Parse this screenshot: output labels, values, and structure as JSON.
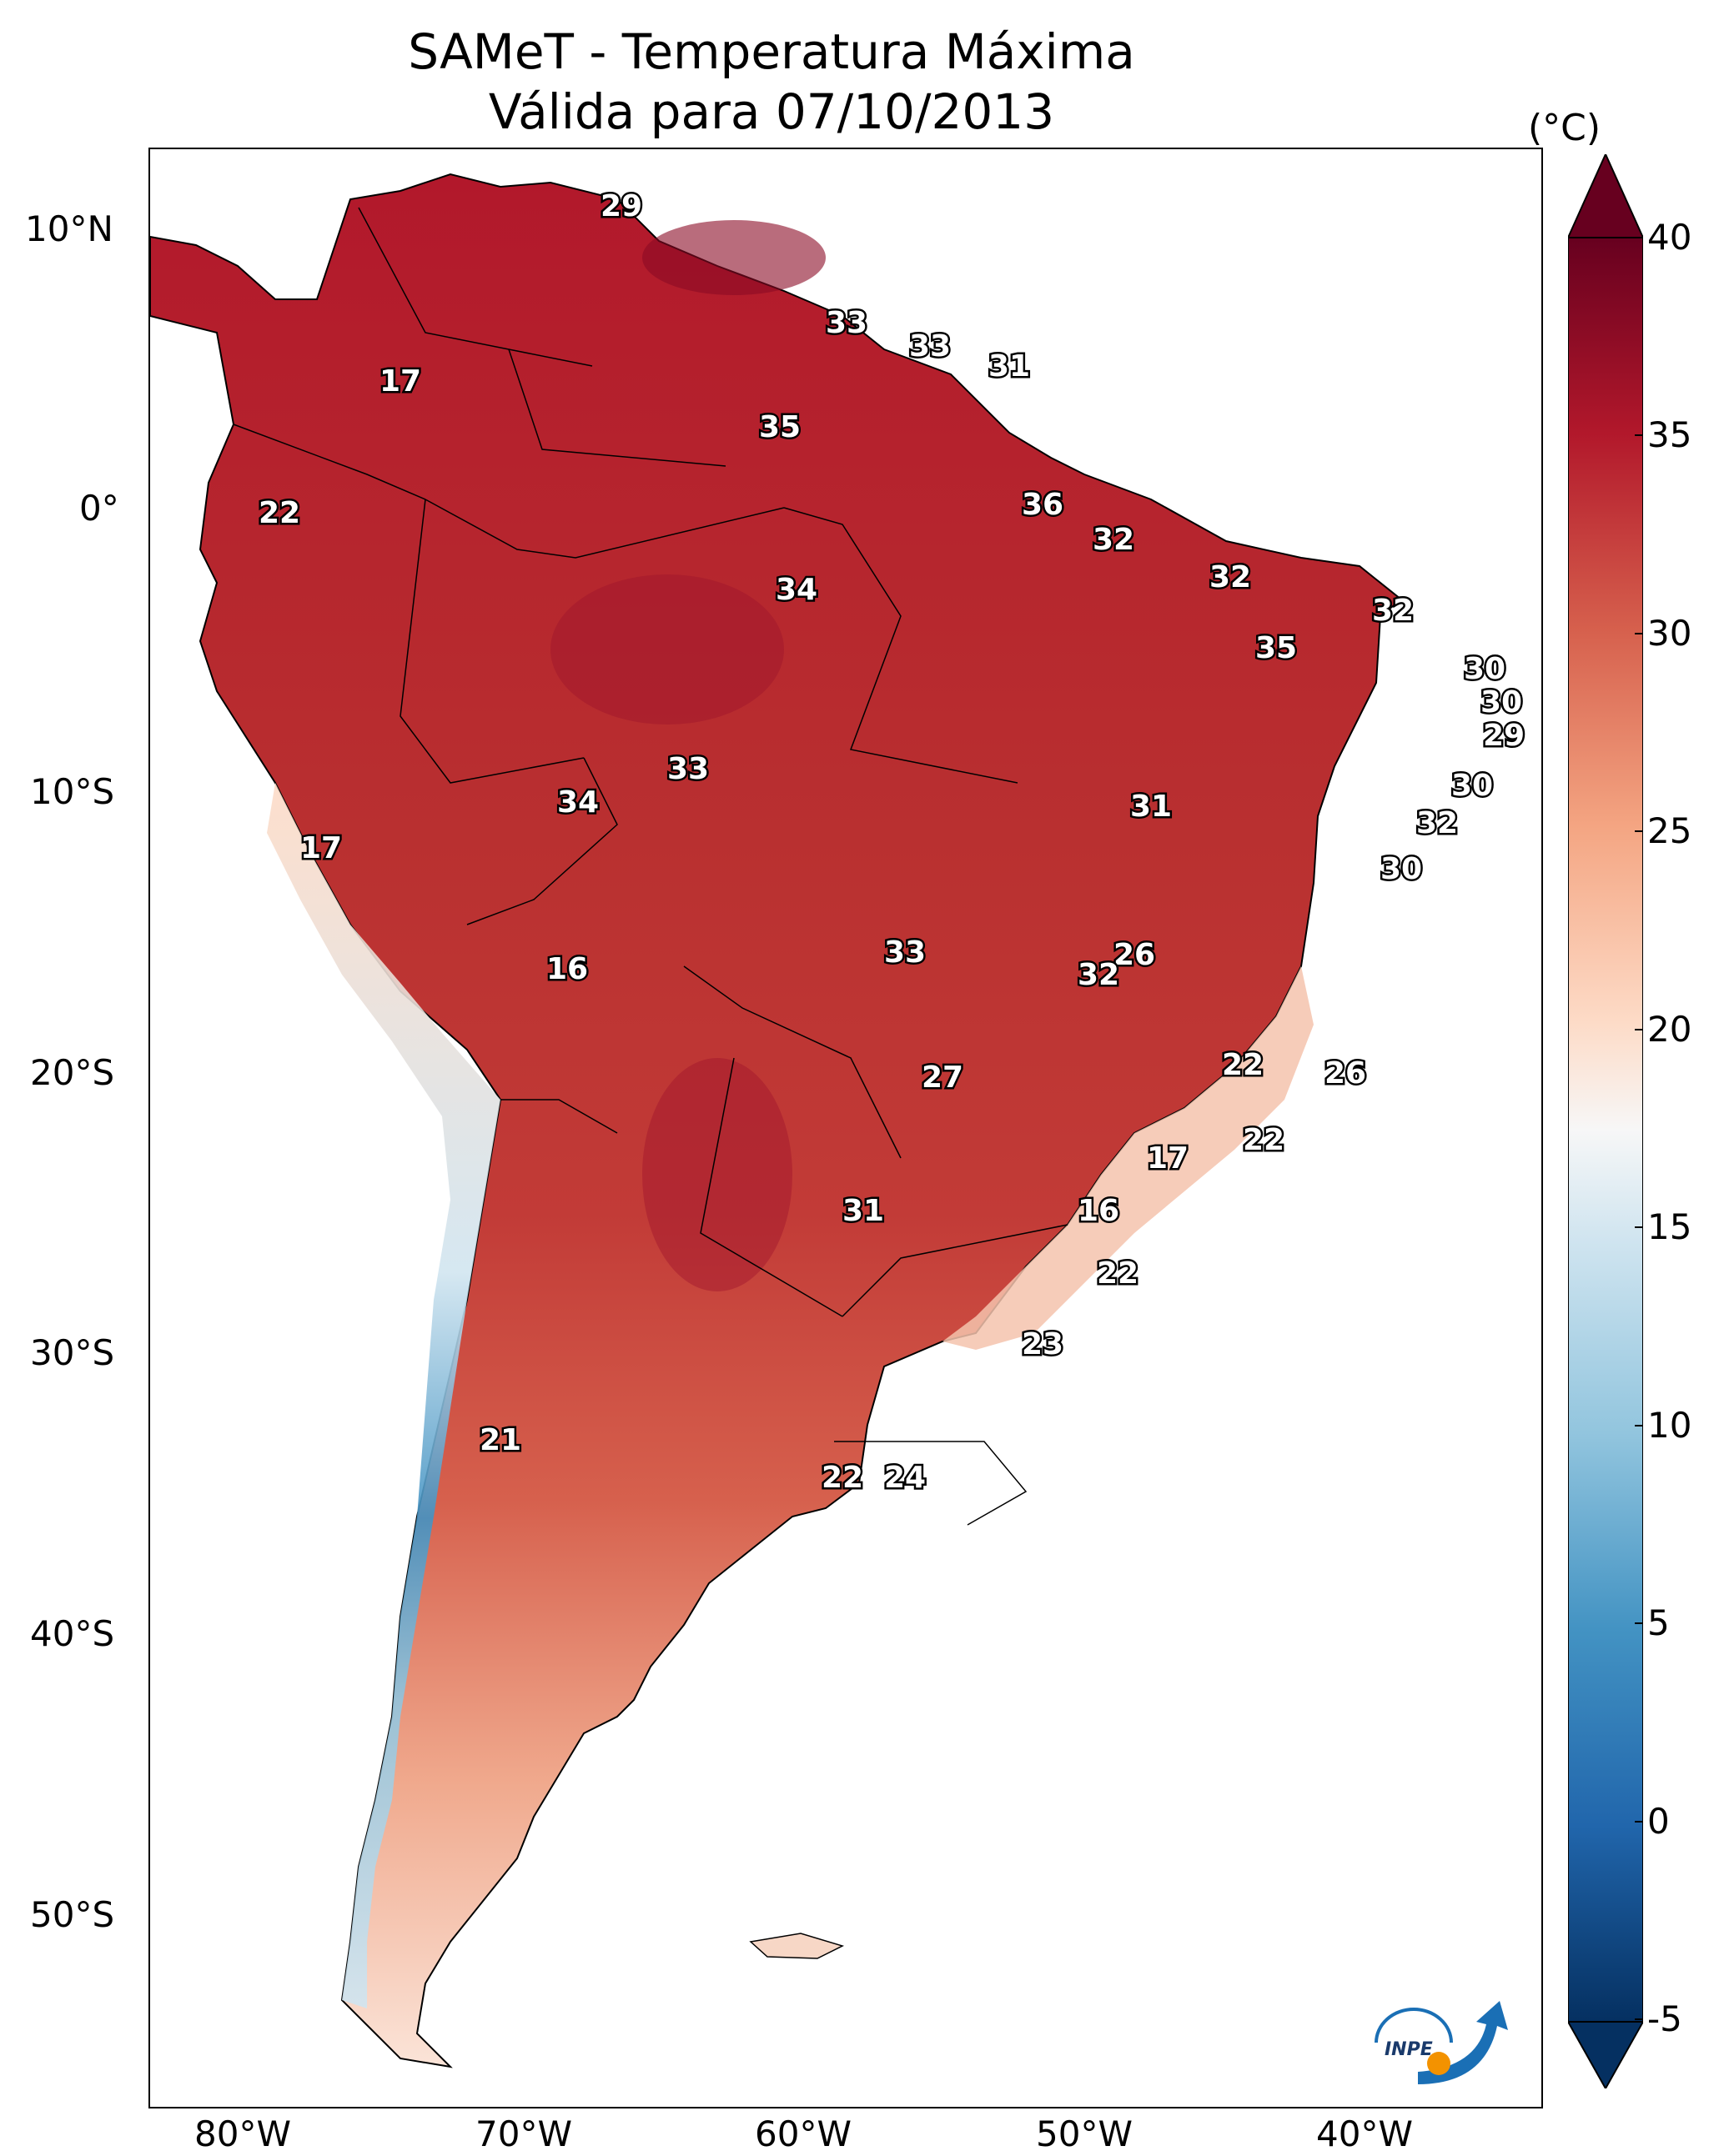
{
  "title": {
    "line1": "SAMeT - Temperatura Máxima",
    "line2": "Válida para 07/10/2013"
  },
  "axes": {
    "lat_labels": [
      "10°N",
      "0°",
      "10°S",
      "20°S",
      "30°S",
      "40°S",
      "50°S"
    ],
    "lon_labels": [
      "80°W",
      "70°W",
      "60°W",
      "50°W",
      "40°W"
    ]
  },
  "colorbar": {
    "unit": "(°C)",
    "ticks": [
      "40",
      "35",
      "30",
      "25",
      "20",
      "15",
      "10",
      "5",
      "0",
      "-5"
    ],
    "min": -5,
    "max": 40,
    "colors": {
      "max": "#67001f",
      "hot": "#b2182b",
      "warm": "#d6604d",
      "mild": "#f4a582",
      "cool": "#fddbc7",
      "neutral": "#f7f7f7",
      "chill": "#d1e5f0",
      "cold": "#92c5de",
      "colder": "#4393c3",
      "coldest": "#2166ac",
      "min": "#053061"
    }
  },
  "station_values": [
    {
      "label": "29"
    },
    {
      "label": "33"
    },
    {
      "label": "33"
    },
    {
      "label": "31"
    },
    {
      "label": "17"
    },
    {
      "label": "35"
    },
    {
      "label": "36"
    },
    {
      "label": "22"
    },
    {
      "label": "32"
    },
    {
      "label": "34"
    },
    {
      "label": "32"
    },
    {
      "label": "32"
    },
    {
      "label": "35"
    },
    {
      "label": "30"
    },
    {
      "label": "30"
    },
    {
      "label": "29"
    },
    {
      "label": "33"
    },
    {
      "label": "34"
    },
    {
      "label": "31"
    },
    {
      "label": "30"
    },
    {
      "label": "32"
    },
    {
      "label": "17"
    },
    {
      "label": "30"
    },
    {
      "label": "16"
    },
    {
      "label": "33"
    },
    {
      "label": "26"
    },
    {
      "label": "32"
    },
    {
      "label": "22"
    },
    {
      "label": "27"
    },
    {
      "label": "26"
    },
    {
      "label": "22"
    },
    {
      "label": "17"
    },
    {
      "label": "31"
    },
    {
      "label": "16"
    },
    {
      "label": "22"
    },
    {
      "label": "23"
    },
    {
      "label": "21"
    },
    {
      "label": "22"
    },
    {
      "label": "24"
    }
  ],
  "logo": {
    "text": "INPE"
  }
}
